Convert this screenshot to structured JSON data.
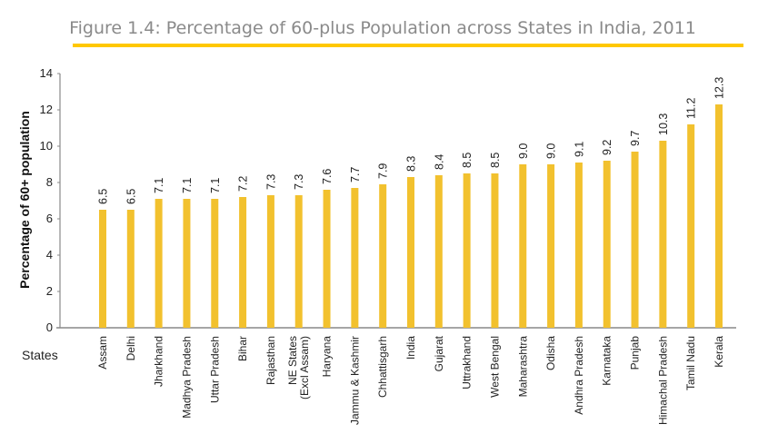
{
  "chart_data": {
    "type": "bar",
    "title": "Figure 1.4: Percentage of 60-plus Population across States in India, 2011",
    "xlabel": "States",
    "ylabel": "Percentage of 60+ population",
    "ylim": [
      0,
      14
    ],
    "yticks": [
      0,
      2,
      4,
      6,
      8,
      10,
      12,
      14
    ],
    "grid": false,
    "categories": [
      [
        "Assam"
      ],
      [
        "Delhi"
      ],
      [
        "Jharkhand"
      ],
      [
        "Madhya Pradesh"
      ],
      [
        "Uttar Pradesh"
      ],
      [
        "Bihar"
      ],
      [
        "Rajasthan"
      ],
      [
        "NE States",
        "(Excl Assam)"
      ],
      [
        "Haryana"
      ],
      [
        "Jammu & Kashmir"
      ],
      [
        "Chhattisgarh"
      ],
      [
        "India"
      ],
      [
        "Gujarat"
      ],
      [
        "Uttrakhand"
      ],
      [
        "West Bengal"
      ],
      [
        "Maharashtra"
      ],
      [
        "Odisha"
      ],
      [
        "Andhra Pradesh"
      ],
      [
        "Karnataka"
      ],
      [
        "Punjab"
      ],
      [
        "Himachal Pradesh"
      ],
      [
        "Tamil Nadu"
      ],
      [
        "Kerala"
      ]
    ],
    "values": [
      6.5,
      6.5,
      7.1,
      7.1,
      7.1,
      7.2,
      7.3,
      7.3,
      7.6,
      7.7,
      7.9,
      8.3,
      8.4,
      8.5,
      8.5,
      9.0,
      9.0,
      9.1,
      9.2,
      9.7,
      10.3,
      11.2,
      12.3
    ],
    "value_labels": [
      "6.5",
      "6.5",
      "7.1",
      "7.1",
      "7.1",
      "7.2",
      "7.3",
      "7.3",
      "7.6",
      "7.7",
      "7.9",
      "8.3",
      "8.4",
      "8.5",
      "8.5",
      "9.0",
      "9.0",
      "9.1",
      "9.2",
      "9.7",
      "10.3",
      "11.2",
      "12.3"
    ],
    "colors": {
      "bar": "#F2C12E",
      "title_rule": "#FFC800",
      "title_text": "#8a8a8a"
    }
  }
}
